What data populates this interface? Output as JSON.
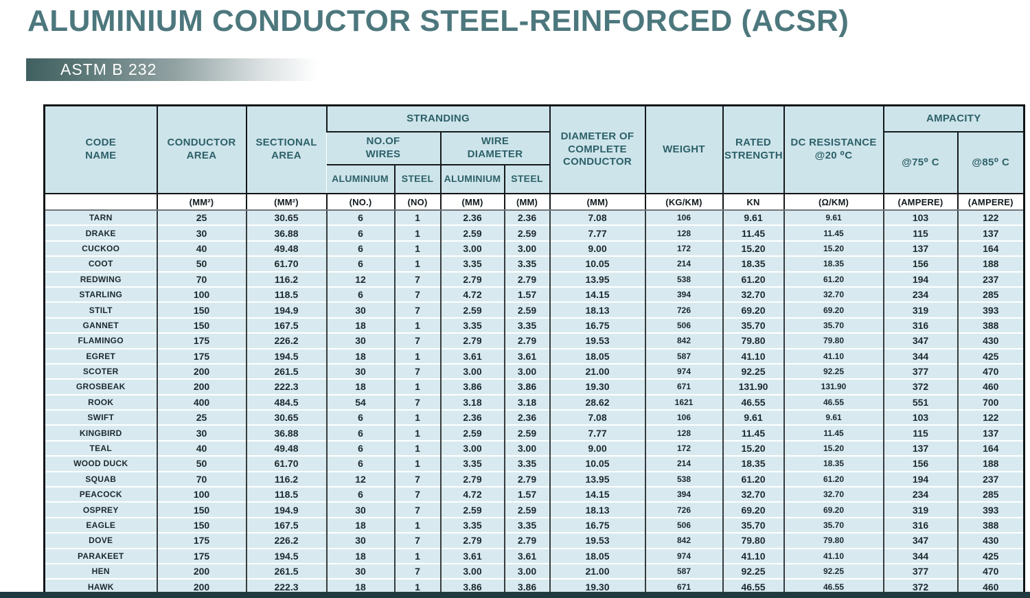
{
  "page": {
    "title": "ALUMINIUM CONDUCTOR STEEL-REINFORCED (ACSR)",
    "standard": "ASTM B 232"
  },
  "colors": {
    "title_teal": "#4c777d",
    "header_bg": "#cde4ea",
    "row_bg": "#d8eaf0",
    "header_text": "#2d6068",
    "bottom_bar": "#203a40",
    "gradient_bar_start": "#40605f"
  },
  "table": {
    "header": {
      "code_name": "CODE NAME",
      "conductor_area": "CONDUCTOR AREA",
      "sectional_area": "SECTIONAL AREA",
      "stranding": "STRANDING",
      "no_of_wires": "NO.OF WIRES",
      "wire_diameter": "WIRE DIAMETER",
      "aluminium_wires": "ALUMINIUM",
      "steel_wires": "STEEL",
      "aluminium_dia": "ALUMINIUM",
      "steel_dia": "STEEL",
      "diameter_complete": "DIAMETER OF COMPLETE CONDUCTOR",
      "weight": "WEIGHT",
      "rated_strength": "RATED STRENGTH",
      "dc_resistance": "DC RESISTANCE @20 ⁰C",
      "ampacity": "AMPACITY",
      "at75": "@75⁰ C",
      "at85": "@85⁰ C"
    },
    "units": [
      "",
      "(MM²)",
      "(MM²)",
      "(NO.)",
      "(NO)",
      "(MM)",
      "(MM)",
      "(MM)",
      "(KG/KM)",
      "KN",
      "(Ω/KM)",
      "(AMPERE)",
      "(AMPERE)"
    ],
    "rows": [
      {
        "code": "TARN",
        "values": [
          "25",
          "30.65",
          "6",
          "1",
          "2.36",
          "2.36",
          "7.08",
          "106",
          "9.61",
          "9.61",
          "103",
          "122"
        ]
      },
      {
        "code": "DRAKE",
        "values": [
          "30",
          "36.88",
          "6",
          "1",
          "2.59",
          "2.59",
          "7.77",
          "128",
          "11.45",
          "11.45",
          "115",
          "137"
        ]
      },
      {
        "code": "CUCKOO",
        "values": [
          "40",
          "49.48",
          "6",
          "1",
          "3.00",
          "3.00",
          "9.00",
          "172",
          "15.20",
          "15.20",
          "137",
          "164"
        ]
      },
      {
        "code": "COOT",
        "values": [
          "50",
          "61.70",
          "6",
          "1",
          "3.35",
          "3.35",
          "10.05",
          "214",
          "18.35",
          "18.35",
          "156",
          "188"
        ]
      },
      {
        "code": "REDWING",
        "values": [
          "70",
          "116.2",
          "12",
          "7",
          "2.79",
          "2.79",
          "13.95",
          "538",
          "61.20",
          "61.20",
          "194",
          "237"
        ]
      },
      {
        "code": "STARLING",
        "values": [
          "100",
          "118.5",
          "6",
          "7",
          "4.72",
          "1.57",
          "14.15",
          "394",
          "32.70",
          "32.70",
          "234",
          "285"
        ]
      },
      {
        "code": "STILT",
        "values": [
          "150",
          "194.9",
          "30",
          "7",
          "2.59",
          "2.59",
          "18.13",
          "726",
          "69.20",
          "69.20",
          "319",
          "393"
        ]
      },
      {
        "code": "GANNET",
        "values": [
          "150",
          "167.5",
          "18",
          "1",
          "3.35",
          "3.35",
          "16.75",
          "506",
          "35.70",
          "35.70",
          "316",
          "388"
        ]
      },
      {
        "code": "FLAMINGO",
        "values": [
          "175",
          "226.2",
          "30",
          "7",
          "2.79",
          "2.79",
          "19.53",
          "842",
          "79.80",
          "79.80",
          "347",
          "430"
        ]
      },
      {
        "code": "EGRET",
        "values": [
          "175",
          "194.5",
          "18",
          "1",
          "3.61",
          "3.61",
          "18.05",
          "587",
          "41.10",
          "41.10",
          "344",
          "425"
        ]
      },
      {
        "code": "SCOTER",
        "values": [
          "200",
          "261.5",
          "30",
          "7",
          "3.00",
          "3.00",
          "21.00",
          "974",
          "92.25",
          "92.25",
          "377",
          "470"
        ]
      },
      {
        "code": "GROSBEAK",
        "values": [
          "200",
          "222.3",
          "18",
          "1",
          "3.86",
          "3.86",
          "19.30",
          "671",
          "131.90",
          "131.90",
          "372",
          "460"
        ]
      },
      {
        "code": "ROOK",
        "values": [
          "400",
          "484.5",
          "54",
          "7",
          "3.18",
          "3.18",
          "28.62",
          "1621",
          "46.55",
          "46.55",
          "551",
          "700"
        ]
      },
      {
        "code": "SWIFT",
        "values": [
          "25",
          "30.65",
          "6",
          "1",
          "2.36",
          "2.36",
          "7.08",
          "106",
          "9.61",
          "9.61",
          "103",
          "122"
        ]
      },
      {
        "code": "KINGBIRD",
        "values": [
          "30",
          "36.88",
          "6",
          "1",
          "2.59",
          "2.59",
          "7.77",
          "128",
          "11.45",
          "11.45",
          "115",
          "137"
        ]
      },
      {
        "code": "TEAL",
        "values": [
          "40",
          "49.48",
          "6",
          "1",
          "3.00",
          "3.00",
          "9.00",
          "172",
          "15.20",
          "15.20",
          "137",
          "164"
        ]
      },
      {
        "code": "WOOD DUCK",
        "values": [
          "50",
          "61.70",
          "6",
          "1",
          "3.35",
          "3.35",
          "10.05",
          "214",
          "18.35",
          "18.35",
          "156",
          "188"
        ]
      },
      {
        "code": "SQUAB",
        "values": [
          "70",
          "116.2",
          "12",
          "7",
          "2.79",
          "2.79",
          "13.95",
          "538",
          "61.20",
          "61.20",
          "194",
          "237"
        ]
      },
      {
        "code": "PEACOCK",
        "values": [
          "100",
          "118.5",
          "6",
          "7",
          "4.72",
          "1.57",
          "14.15",
          "394",
          "32.70",
          "32.70",
          "234",
          "285"
        ]
      },
      {
        "code": "OSPREY",
        "values": [
          "150",
          "194.9",
          "30",
          "7",
          "2.59",
          "2.59",
          "18.13",
          "726",
          "69.20",
          "69.20",
          "319",
          "393"
        ]
      },
      {
        "code": "EAGLE",
        "values": [
          "150",
          "167.5",
          "18",
          "1",
          "3.35",
          "3.35",
          "16.75",
          "506",
          "35.70",
          "35.70",
          "316",
          "388"
        ]
      },
      {
        "code": "DOVE",
        "values": [
          "175",
          "226.2",
          "30",
          "7",
          "2.79",
          "2.79",
          "19.53",
          "842",
          "79.80",
          "79.80",
          "347",
          "430"
        ]
      },
      {
        "code": "PARAKEET",
        "values": [
          "175",
          "194.5",
          "18",
          "1",
          "3.61",
          "3.61",
          "18.05",
          "974",
          "41.10",
          "41.10",
          "344",
          "425"
        ]
      },
      {
        "code": "HEN",
        "values": [
          "200",
          "261.5",
          "30",
          "7",
          "3.00",
          "3.00",
          "21.00",
          "587",
          "92.25",
          "92.25",
          "377",
          "470"
        ]
      },
      {
        "code": "HAWK",
        "values": [
          "200",
          "222.3",
          "18",
          "1",
          "3.86",
          "3.86",
          "19.30",
          "671",
          "46.55",
          "46.55",
          "372",
          "460"
        ]
      }
    ]
  }
}
